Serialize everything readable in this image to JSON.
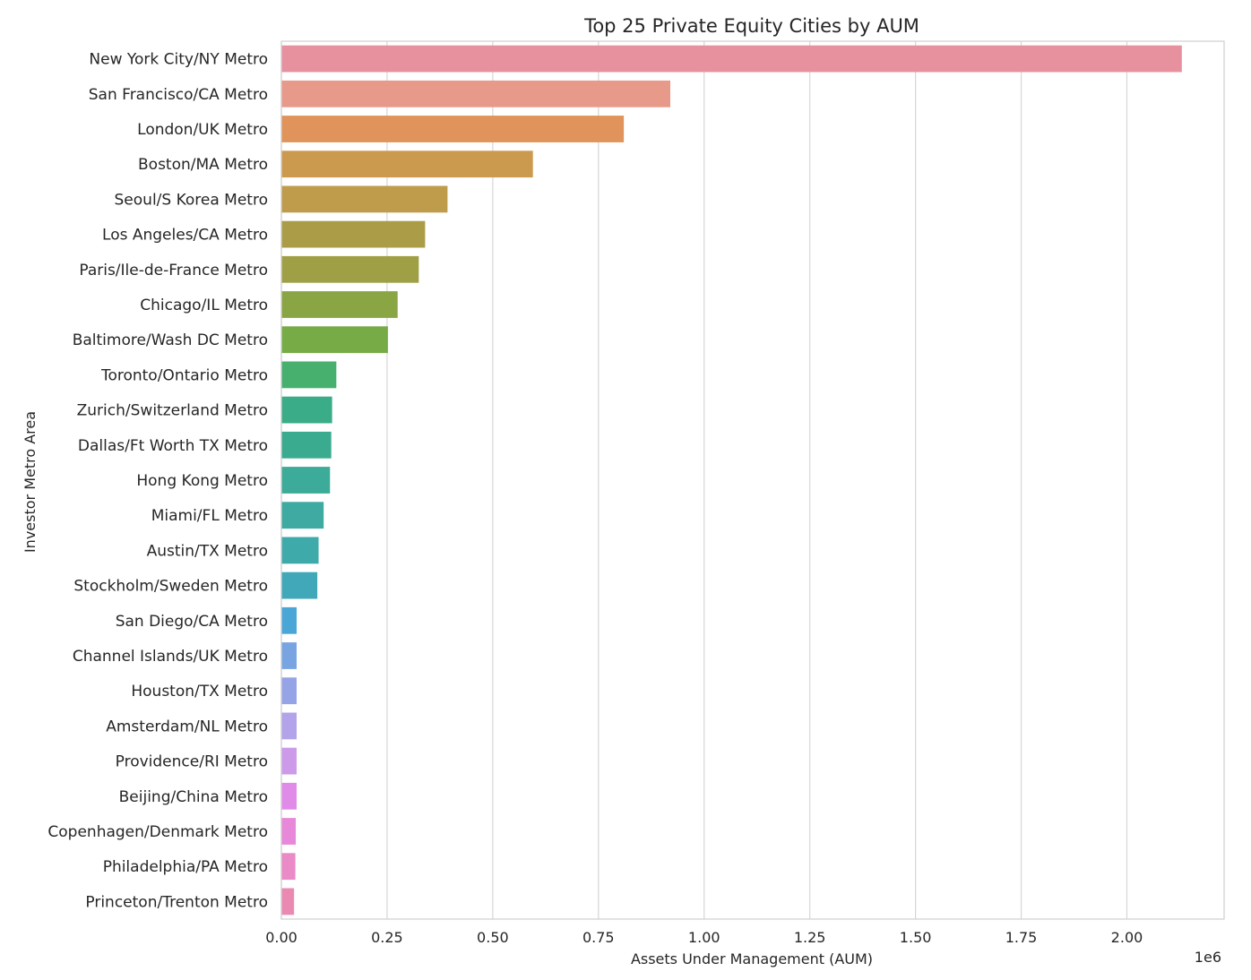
{
  "chart_data": {
    "type": "bar",
    "orientation": "horizontal",
    "title": "Top 25 Private Equity Cities by AUM",
    "xlabel": "Assets Under Management (AUM)",
    "ylabel": "Investor Metro Area",
    "x_offset_label": "1e6",
    "xlim": [
      0,
      2.23
    ],
    "xticks": [
      0,
      0.25,
      0.5,
      0.75,
      1.0,
      1.25,
      1.5,
      1.75,
      2.0
    ],
    "xtick_labels": [
      "0.00",
      "0.25",
      "0.50",
      "0.75",
      "1.00",
      "1.25",
      "1.50",
      "1.75",
      "2.00"
    ],
    "grid": "vertical",
    "categories": [
      "New York City/NY Metro",
      "San Francisco/CA Metro",
      "London/UK Metro",
      "Boston/MA Metro",
      "Seoul/S Korea Metro",
      "Los Angeles/CA Metro",
      "Paris/Ile-de-France Metro",
      "Chicago/IL Metro",
      "Baltimore/Wash DC Metro",
      "Toronto/Ontario Metro",
      "Zurich/Switzerland Metro",
      "Dallas/Ft Worth TX Metro",
      "Hong Kong Metro",
      "Miami/FL Metro",
      "Austin/TX Metro",
      "Stockholm/Sweden Metro",
      "San Diego/CA Metro",
      "Channel Islands/UK Metro",
      "Houston/TX Metro",
      "Amsterdam/NL Metro",
      "Providence/RI Metro",
      "Beijing/China Metro",
      "Copenhagen/Denmark Metro",
      "Philadelphia/PA Metro",
      "Princeton/Trenton Metro"
    ],
    "values": [
      2.13,
      0.92,
      0.81,
      0.595,
      0.393,
      0.34,
      0.325,
      0.275,
      0.252,
      0.13,
      0.12,
      0.118,
      0.115,
      0.1,
      0.088,
      0.085,
      0.036,
      0.036,
      0.036,
      0.036,
      0.036,
      0.036,
      0.034,
      0.033,
      0.03
    ],
    "colors": [
      "#e8919e",
      "#e89a8a",
      "#e0935a",
      "#cc9a4e",
      "#bf9c4c",
      "#ab9c48",
      "#9fa046",
      "#8aa544",
      "#76ab46",
      "#47b06e",
      "#3bac88",
      "#3bab90",
      "#3dab99",
      "#3eaaa1",
      "#3faaaa",
      "#40a8b8",
      "#4aa6d6",
      "#79a4e2",
      "#95a4e6",
      "#b3a3ea",
      "#cd9aea",
      "#e18be8",
      "#e888d8",
      "#ea8ac6",
      "#ea8ab3"
    ]
  }
}
